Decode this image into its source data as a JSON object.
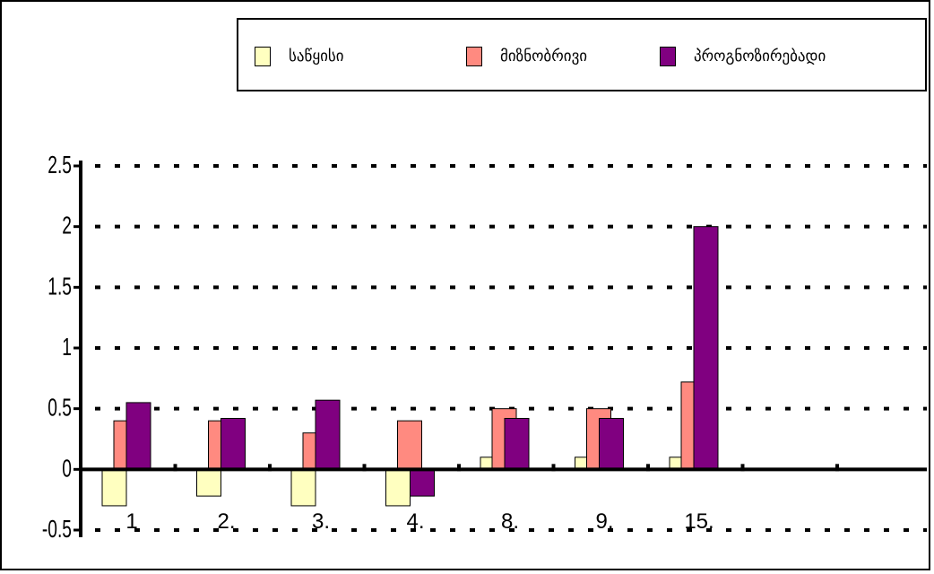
{
  "chart_data": {
    "type": "bar",
    "categories": [
      "1",
      "2.",
      "3.",
      "4.",
      "8.",
      "9.",
      "15."
    ],
    "series": [
      {
        "name": "საწყისი",
        "color": "#ffffc0",
        "values": [
          -0.3,
          -0.22,
          -0.3,
          -0.3,
          0.1,
          0.1,
          0.1
        ]
      },
      {
        "name": "მიზნობრივი",
        "color": "#ff8a80",
        "values": [
          0.4,
          0.4,
          0.3,
          0.4,
          0.5,
          0.5,
          0.72
        ]
      },
      {
        "name": "პროგნოზირებადი",
        "color": "#800080",
        "values": [
          0.55,
          0.42,
          0.57,
          -0.22,
          0.42,
          0.42,
          2.0
        ]
      }
    ],
    "yticks": [
      "-0.5",
      "0",
      "0.5",
      "1",
      "1.5",
      "2",
      "2.5"
    ],
    "ylim": [
      -0.5,
      2.5
    ],
    "grid": true,
    "legend_position": "top-right",
    "title": "",
    "xlabel": "",
    "ylabel": ""
  }
}
